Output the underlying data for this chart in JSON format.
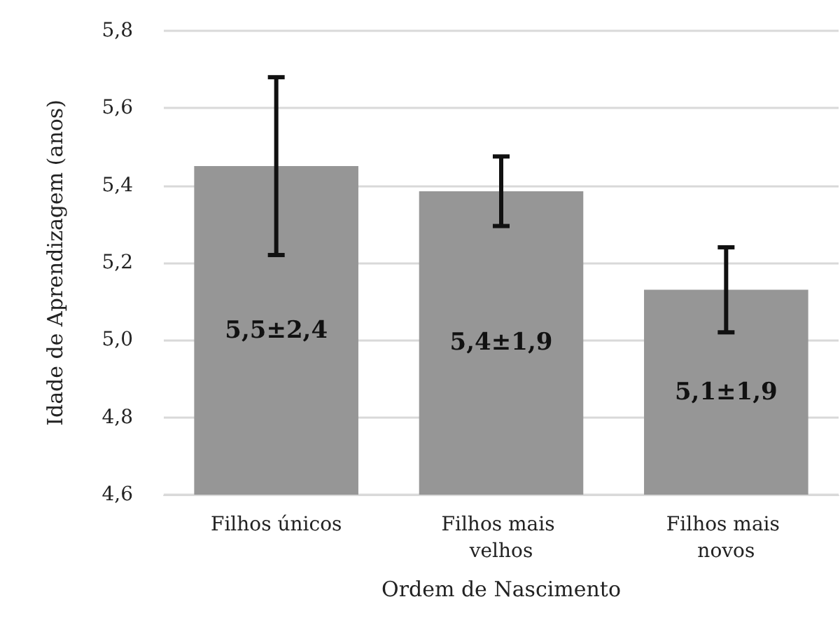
{
  "chart_data": {
    "type": "bar",
    "xlabel": "Ordem de Nascimento",
    "ylabel": "Idade de Aprendizagem (anos)",
    "categories": [
      "Filhos únicos",
      "Filhos mais velhos",
      "Filhos mais novos"
    ],
    "values": [
      5.45,
      5.385,
      5.13
    ],
    "errors": [
      0.23,
      0.09,
      0.11
    ],
    "value_labels": [
      "5,5±2,4",
      "5,4±1,9",
      "5,1±1,9"
    ],
    "color": "#969696",
    "ylim": [
      4.6,
      5.8
    ],
    "yticks": [
      {
        "value": 4.6,
        "label": "4,6"
      },
      {
        "value": 4.8,
        "label": "4,8"
      },
      {
        "value": 5.0,
        "label": "5,0"
      },
      {
        "value": 5.2,
        "label": "5,2"
      },
      {
        "value": 5.4,
        "label": "5,4"
      },
      {
        "value": 5.6,
        "label": "5,6"
      },
      {
        "value": 5.8,
        "label": "5,8"
      }
    ],
    "grid": "y"
  }
}
